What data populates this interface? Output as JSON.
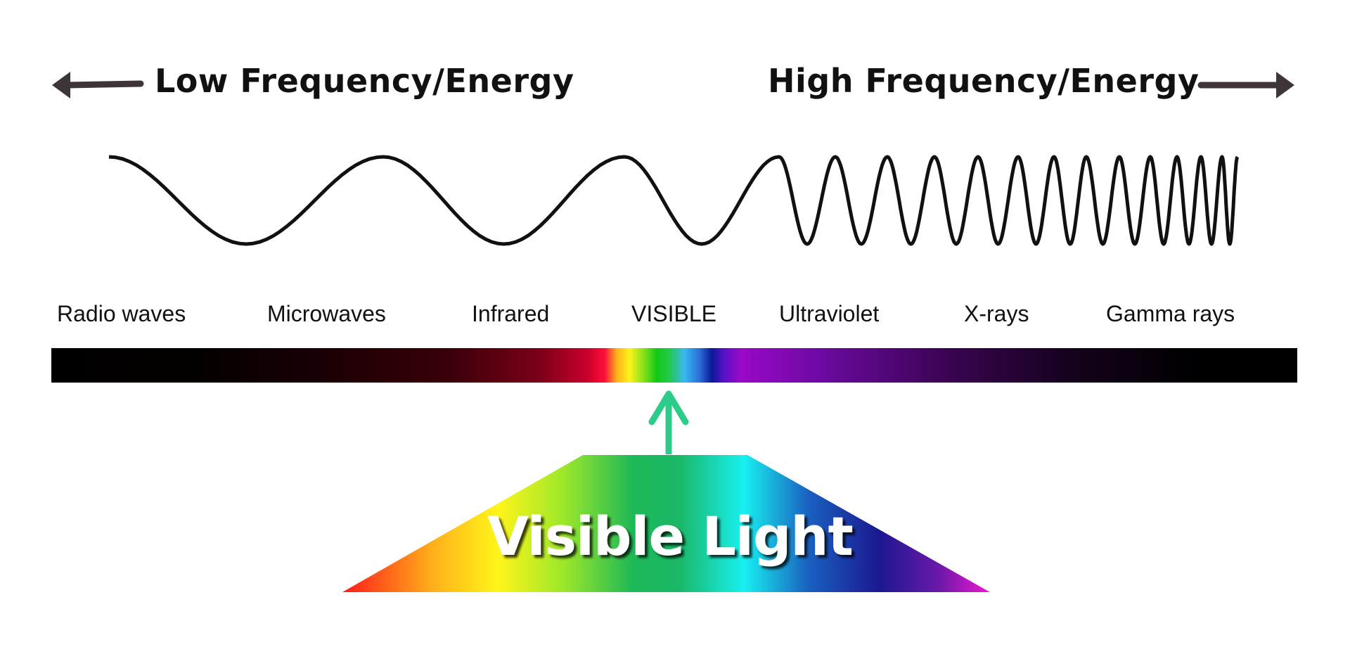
{
  "headings": {
    "low": "Low Frequency/Energy",
    "high": "High Frequency/Energy"
  },
  "bands": [
    "Radio waves",
    "Microwaves",
    "Infrared",
    "VISIBLE",
    "Ultraviolet",
    "X-rays",
    "Gamma rays"
  ],
  "visible_light_label": "Visible Light",
  "colors": {
    "arrow_dark": "#3d3537",
    "pointer_arrow": "#2ecc8a",
    "wave": "#111111",
    "spectrum_visible": [
      "#ff1a1a",
      "#ffb01a",
      "#fff51a",
      "#9ee82a",
      "#1cb857",
      "#18f0f0",
      "#1a60c0",
      "#1c1890",
      "#8a14a8",
      "#f018d0"
    ]
  }
}
